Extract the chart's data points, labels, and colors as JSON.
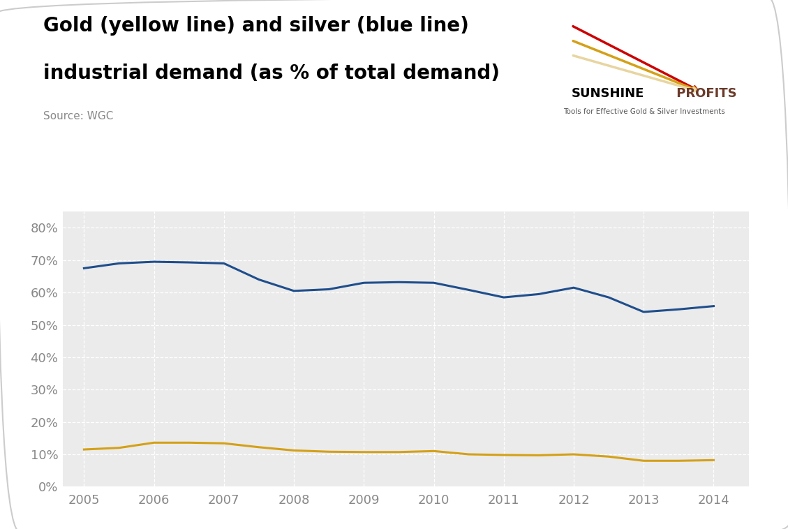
{
  "title_line1": "Gold (yellow line) and silver (blue line)",
  "title_line2": "industrial demand (as % of total demand)",
  "source": "Source: WGC",
  "years": [
    2005,
    2005.5,
    2006,
    2006.5,
    2007,
    2007.5,
    2008,
    2008.5,
    2009,
    2009.5,
    2010,
    2010.5,
    2011,
    2011.5,
    2012,
    2012.5,
    2013,
    2013.5,
    2014
  ],
  "silver_values": [
    0.675,
    0.69,
    0.695,
    0.693,
    0.69,
    0.64,
    0.605,
    0.61,
    0.63,
    0.632,
    0.63,
    0.608,
    0.585,
    0.595,
    0.615,
    0.585,
    0.54,
    0.548,
    0.558
  ],
  "gold_values": [
    0.115,
    0.12,
    0.136,
    0.136,
    0.134,
    0.122,
    0.112,
    0.108,
    0.107,
    0.107,
    0.11,
    0.1,
    0.098,
    0.097,
    0.1,
    0.093,
    0.08,
    0.08,
    0.082
  ],
  "silver_color": "#1F4E8C",
  "gold_color": "#D4A017",
  "plot_bg_color": "#EBEBEB",
  "outer_bg_color": "#FFFFFF",
  "grid_color": "#FFFFFF",
  "title_fontsize": 20,
  "source_fontsize": 11,
  "tick_fontsize": 13,
  "tick_color": "#888888",
  "ylim": [
    0,
    0.85
  ],
  "yticks": [
    0,
    0.1,
    0.2,
    0.3,
    0.4,
    0.5,
    0.6,
    0.7,
    0.8
  ],
  "xtick_years": [
    2005,
    2006,
    2007,
    2008,
    2009,
    2010,
    2011,
    2012,
    2013,
    2014
  ],
  "line_width": 2.2,
  "sunshine_text": "SUNSHINE PROFITS",
  "sunshine_sub": "Tools for Effective Gold & Silver Investments"
}
